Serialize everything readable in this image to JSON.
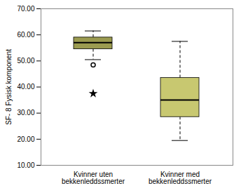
{
  "chart_data": {
    "type": "box",
    "ylabel": "SF- 8 Fysisk komponent",
    "categories": [
      "Kvinner uten\nbekkenleddssmerter",
      "Kvinner med\nbekkenleddssmerter"
    ],
    "boxes": [
      {
        "median": 57.0,
        "q1": 54.5,
        "q3": 59.0,
        "whislo": 50.5,
        "whishi": 61.5,
        "outliers": [
          48.5
        ],
        "extreme_outliers": [
          37.5
        ]
      },
      {
        "median": 35.0,
        "q1": 28.5,
        "q3": 43.5,
        "whislo": 19.5,
        "whishi": 57.5,
        "outliers": [],
        "extreme_outliers": []
      }
    ],
    "colors": [
      "#9b9b50",
      "#c8c870"
    ],
    "ylim": [
      10,
      70
    ],
    "yticks": [
      {
        "value": 10,
        "label": "10.00"
      },
      {
        "value": 20,
        "label": "20.00"
      },
      {
        "value": 30,
        "label": "30.00"
      },
      {
        "value": 40,
        "label": "40.00"
      },
      {
        "value": 50,
        "label": "50.00"
      },
      {
        "value": 60,
        "label": "60.00"
      },
      {
        "value": 70,
        "label": "70.00"
      }
    ],
    "grid": false
  }
}
